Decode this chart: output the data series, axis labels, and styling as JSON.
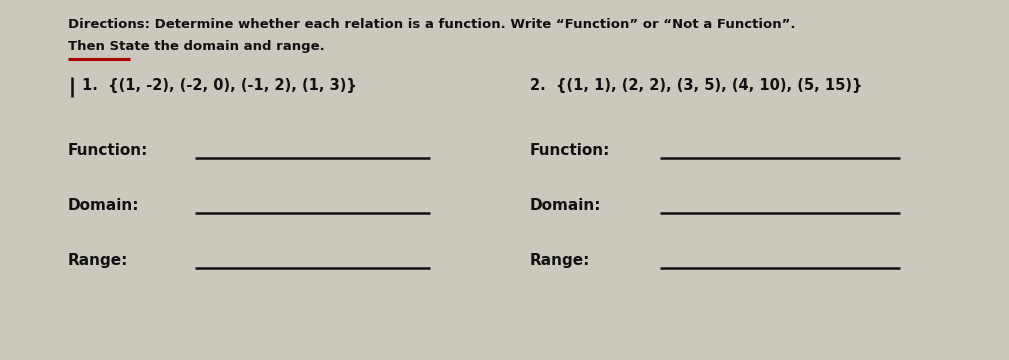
{
  "background_color": "#ccc8be",
  "title_line1": "Directions: Determine whether each relation is a function. Write “Function” or “Not a Function”.",
  "title_line2": "Then State the domain and range.",
  "underline_color": "#aa0000",
  "problem1": "1.  {(1, -2), (-2, 0), (-1, 2), (1, 3)}",
  "problem2": "2.  {(1, 1), (2, 2), (3, 5), (4, 10), (5, 15)}",
  "label_function": "Function:",
  "label_domain": "Domain:",
  "label_range": "Range:",
  "line_color": "#111111",
  "text_color": "#111111",
  "font_size_dir": 9.5,
  "font_size_problems": 10.5,
  "font_size_labels": 11.0
}
